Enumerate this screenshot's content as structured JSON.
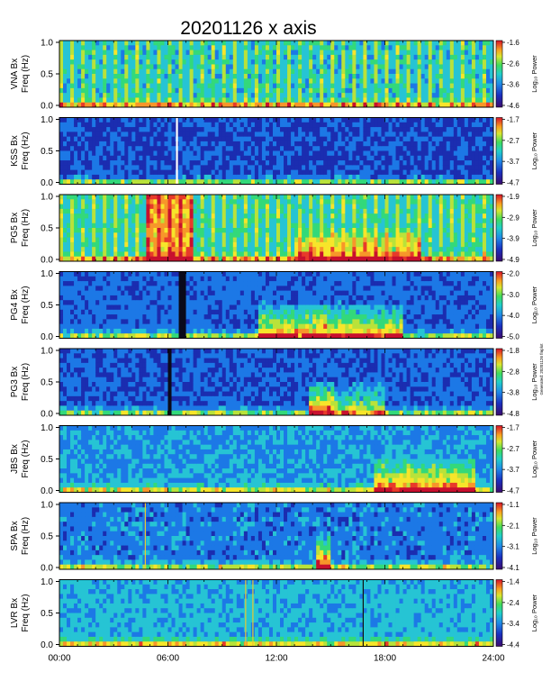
{
  "chart_data": {
    "type": "heatmap",
    "title": "20201126  x axis",
    "footer_note": "Generated: 20201126 ... (vertical note at right edge)",
    "x_axis": {
      "range_hours": [
        0,
        24
      ],
      "tick_labels": [
        "00:00",
        "06:00",
        "12:00",
        "18:00",
        "24:00"
      ]
    },
    "y_axis": {
      "label": "Freq (Hz)",
      "range": [
        0.0,
        1.0
      ],
      "tick_labels": [
        "0.0",
        "0.5",
        "1.0"
      ]
    },
    "colorbar_label": "Log₁₀ Power",
    "colorscale": [
      "#2a0f6b",
      "#1b2db0",
      "#1c78e6",
      "#26c4d4",
      "#33d97a",
      "#b9e23a",
      "#f7e52a",
      "#f7962a",
      "#e83a2a",
      "#c8102e"
    ],
    "panels": [
      {
        "station": "VNA Bx",
        "colorbar_ticks": [
          "-1.6",
          "-2.6",
          "-3.6",
          "-4.6"
        ],
        "base_level": 0.28,
        "stripes": true,
        "gaps_hours": [],
        "bursts": [],
        "vertical_lines": []
      },
      {
        "station": "KSS Bx",
        "colorbar_ticks": [
          "-1.7",
          "-2.7",
          "-3.7",
          "-4.7"
        ],
        "base_level": 0.12,
        "stripes": false,
        "gaps_hours": [],
        "bursts": [],
        "vertical_lines": [
          {
            "hour": 6.5,
            "color": "#ffffff"
          }
        ]
      },
      {
        "station": "PG5 Bx",
        "colorbar_ticks": [
          "-1.9",
          "-2.9",
          "-3.9",
          "-4.9"
        ],
        "base_level": 0.3,
        "stripes": true,
        "gaps_hours": [],
        "bursts": [
          {
            "start_hour": 4.8,
            "end_hour": 7.3,
            "level": 0.45,
            "full_height": true
          },
          {
            "start_hour": 13.0,
            "end_hour": 20.0,
            "level": 0.45,
            "full_height": false
          }
        ],
        "vertical_lines": []
      },
      {
        "station": "PG4 Bx",
        "colorbar_ticks": [
          "-2.0",
          "-3.0",
          "-4.0",
          "-5.0"
        ],
        "base_level": 0.16,
        "stripes": false,
        "gaps_hours": [
          [
            6.7,
            6.95
          ]
        ],
        "bursts": [
          {
            "start_hour": 11.0,
            "end_hour": 19.0,
            "level": 0.55,
            "full_height": false
          },
          {
            "start_hour": 14.0,
            "end_hour": 14.8,
            "level": 0.75,
            "full_height": false
          }
        ],
        "vertical_lines": []
      },
      {
        "station": "PG3 Bx",
        "colorbar_ticks": [
          "-1.8",
          "-2.8",
          "-3.8",
          "-4.8"
        ],
        "base_level": 0.14,
        "stripes": false,
        "gaps_hours": [
          [
            6.05,
            6.3
          ]
        ],
        "bursts": [
          {
            "start_hour": 13.8,
            "end_hour": 15.2,
            "level": 0.7,
            "full_height": false
          },
          {
            "start_hour": 15.2,
            "end_hour": 18.0,
            "level": 0.4,
            "full_height": false
          }
        ],
        "vertical_lines": []
      },
      {
        "station": "JBS Bx",
        "colorbar_ticks": [
          "-1.7",
          "-2.7",
          "-3.7",
          "-4.7"
        ],
        "base_level": 0.22,
        "stripes": false,
        "gaps_hours": [],
        "bursts": [
          {
            "start_hour": 17.5,
            "end_hour": 23.0,
            "level": 0.55,
            "full_height": false
          }
        ],
        "vertical_lines": []
      },
      {
        "station": "SPA Bx",
        "colorbar_ticks": [
          "-1.1",
          "-2.1",
          "-3.1",
          "-4.1"
        ],
        "base_level": 0.18,
        "stripes": false,
        "gaps_hours": [],
        "bursts": [
          {
            "start_hour": 14.3,
            "end_hour": 14.9,
            "level": 0.8,
            "full_height": false
          }
        ],
        "vertical_lines": [
          {
            "hour": 4.75,
            "color": "#e8c832"
          }
        ]
      },
      {
        "station": "LVR Bx",
        "colorbar_ticks": [
          "-1.4",
          "-2.4",
          "-3.4",
          "-4.4"
        ],
        "base_level": 0.26,
        "stripes": false,
        "gaps_hours": [],
        "bursts": [],
        "vertical_lines": [
          {
            "hour": 10.3,
            "color": "#e8c832"
          },
          {
            "hour": 10.7,
            "color": "#e8c832"
          },
          {
            "hour": 16.8,
            "color": "#111111"
          }
        ]
      }
    ]
  }
}
